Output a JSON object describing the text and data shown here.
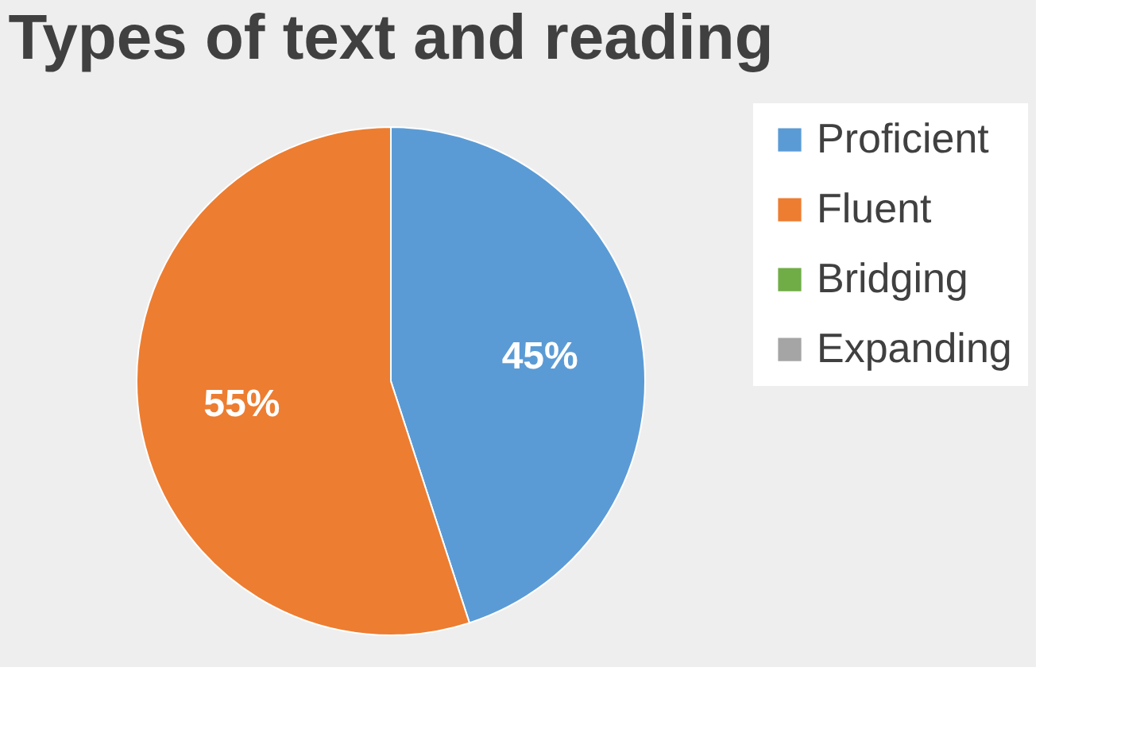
{
  "chart_data": {
    "type": "pie",
    "title": "Types of text and reading",
    "categories": [
      "Proficient",
      "Fluent",
      "Bridging",
      "Expanding"
    ],
    "values": [
      45,
      55,
      0,
      0
    ],
    "colors": [
      "#5b9bd5",
      "#ed7d31",
      "#70ad47",
      "#a5a5a5"
    ],
    "value_labels": [
      "45%",
      "55%",
      null,
      null
    ],
    "legend": "right"
  }
}
